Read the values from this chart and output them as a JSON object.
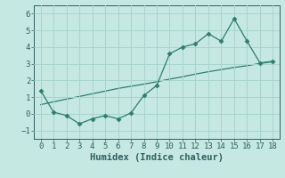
{
  "xlabel": "Humidex (Indice chaleur)",
  "line1_x": [
    0,
    1,
    2,
    3,
    4,
    5,
    6,
    7,
    8,
    9,
    10,
    11,
    12,
    13,
    14,
    15,
    16,
    17,
    18
  ],
  "line1_y": [
    1.4,
    0.1,
    -0.1,
    -0.6,
    -0.3,
    -0.1,
    -0.3,
    0.05,
    1.1,
    1.7,
    3.6,
    4.0,
    4.2,
    4.8,
    4.35,
    5.7,
    4.35,
    3.05,
    3.15
  ],
  "line2_x": [
    0,
    1,
    2,
    3,
    4,
    5,
    6,
    7,
    8,
    9,
    10,
    11,
    12,
    13,
    14,
    15,
    16,
    17,
    18
  ],
  "line2_y": [
    0.55,
    0.72,
    0.88,
    1.04,
    1.2,
    1.36,
    1.52,
    1.65,
    1.78,
    1.92,
    2.08,
    2.22,
    2.38,
    2.52,
    2.65,
    2.78,
    2.88,
    3.02,
    3.12
  ],
  "line_color": "#2e7d6e",
  "bg_color": "#c5e8e2",
  "grid_color": "#a8d4cc",
  "ylim": [
    -1.5,
    6.5
  ],
  "xlim": [
    -0.5,
    18.5
  ],
  "yticks": [
    -1,
    0,
    1,
    2,
    3,
    4,
    5,
    6
  ],
  "xticks": [
    0,
    1,
    2,
    3,
    4,
    5,
    6,
    7,
    8,
    9,
    10,
    11,
    12,
    13,
    14,
    15,
    16,
    17,
    18
  ],
  "tick_color": "#2e6060",
  "xlabel_fontsize": 7.5,
  "tick_fontsize": 6.5
}
